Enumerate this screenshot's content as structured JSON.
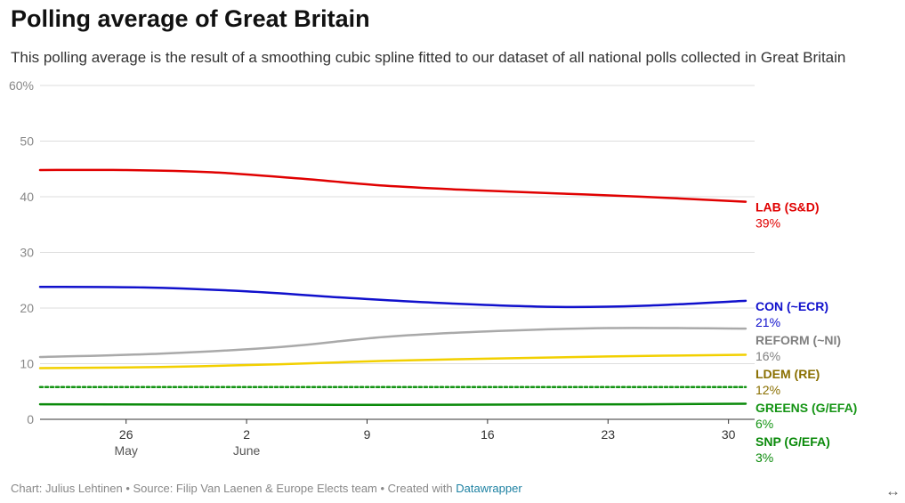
{
  "header": {
    "title": "Polling average of Great Britain",
    "subtitle": "This polling average is the result of a smoothing cubic spline fitted to our dataset of all national polls collected in Great Britain"
  },
  "footer": {
    "prefix": "Chart: Julius Lehtinen • Source: Filip Van Laenen & Europe Elects team • Created with ",
    "link": "Datawrapper"
  },
  "expand_icon": "double-arrow-icon",
  "chart_data": {
    "type": "line",
    "title": "Polling average of Great Britain",
    "ylim": [
      0,
      60
    ],
    "yticks": [
      0,
      10,
      20,
      30,
      40,
      50,
      60
    ],
    "ytick_labels": [
      "0",
      "10",
      "20",
      "30",
      "40",
      "50",
      "60%"
    ],
    "xlim": [
      "2024-05-21",
      "2024-07-01"
    ],
    "xticks": [
      {
        "date": "2024-05-26",
        "label": "26",
        "sublabel": "May"
      },
      {
        "date": "2024-06-02",
        "label": "2",
        "sublabel": "June"
      },
      {
        "date": "2024-06-09",
        "label": "9",
        "sublabel": ""
      },
      {
        "date": "2024-06-16",
        "label": "16",
        "sublabel": ""
      },
      {
        "date": "2024-06-23",
        "label": "23",
        "sublabel": ""
      },
      {
        "date": "2024-06-30",
        "label": "30",
        "sublabel": ""
      }
    ],
    "grid": true,
    "legend": "direct labels at right end of lines",
    "series": [
      {
        "name": "LAB (S&D)",
        "end_label": "39%",
        "color": "#e00000",
        "label_color": "#e00000",
        "width": 2.5,
        "dash": "",
        "points": [
          [
            "2024-05-21",
            44.8
          ],
          [
            "2024-05-26",
            44.8
          ],
          [
            "2024-05-31",
            44.4
          ],
          [
            "2024-06-05",
            43.3
          ],
          [
            "2024-06-10",
            42.0
          ],
          [
            "2024-06-15",
            41.2
          ],
          [
            "2024-06-20",
            40.6
          ],
          [
            "2024-06-25",
            40.0
          ],
          [
            "2024-07-01",
            39.1
          ]
        ]
      },
      {
        "name": "CON (~ECR)",
        "end_label": "21%",
        "color": "#1010cc",
        "label_color": "#1010cc",
        "width": 2.5,
        "dash": "",
        "points": [
          [
            "2024-05-21",
            23.8
          ],
          [
            "2024-05-27",
            23.7
          ],
          [
            "2024-06-02",
            23.0
          ],
          [
            "2024-06-08",
            21.8
          ],
          [
            "2024-06-14",
            20.8
          ],
          [
            "2024-06-20",
            20.2
          ],
          [
            "2024-06-25",
            20.4
          ],
          [
            "2024-07-01",
            21.3
          ]
        ]
      },
      {
        "name": "REFORM (~NI)",
        "end_label": "16%",
        "color": "#a9a9a9",
        "label_color": "#808080",
        "width": 2.5,
        "dash": "",
        "points": [
          [
            "2024-05-21",
            11.2
          ],
          [
            "2024-05-28",
            11.8
          ],
          [
            "2024-06-04",
            13.0
          ],
          [
            "2024-06-10",
            14.8
          ],
          [
            "2024-06-16",
            15.8
          ],
          [
            "2024-06-23",
            16.4
          ],
          [
            "2024-07-01",
            16.3
          ]
        ]
      },
      {
        "name": "LDEM (RE)",
        "end_label": "12%",
        "color": "#f2d000",
        "label_color": "#8a6f00",
        "width": 2.5,
        "dash": "",
        "points": [
          [
            "2024-05-21",
            9.2
          ],
          [
            "2024-05-28",
            9.4
          ],
          [
            "2024-06-04",
            9.9
          ],
          [
            "2024-06-10",
            10.5
          ],
          [
            "2024-06-16",
            10.9
          ],
          [
            "2024-06-23",
            11.3
          ],
          [
            "2024-07-01",
            11.6
          ]
        ]
      },
      {
        "name": "GREENS (G/EFA)",
        "end_label": "6%",
        "color": "#149414",
        "label_color": "#149414",
        "width": 2.5,
        "dash": "3,3",
        "points": [
          [
            "2024-05-21",
            5.8
          ],
          [
            "2024-06-10",
            5.8
          ],
          [
            "2024-07-01",
            5.8
          ]
        ]
      },
      {
        "name": "SNP (G/EFA)",
        "end_label": "3%",
        "color": "#0a8a0a",
        "label_color": "#0a8a0a",
        "width": 2.5,
        "dash": "",
        "points": [
          [
            "2024-05-21",
            2.7
          ],
          [
            "2024-06-10",
            2.6
          ],
          [
            "2024-06-25",
            2.7
          ],
          [
            "2024-07-01",
            2.8
          ]
        ]
      }
    ]
  }
}
